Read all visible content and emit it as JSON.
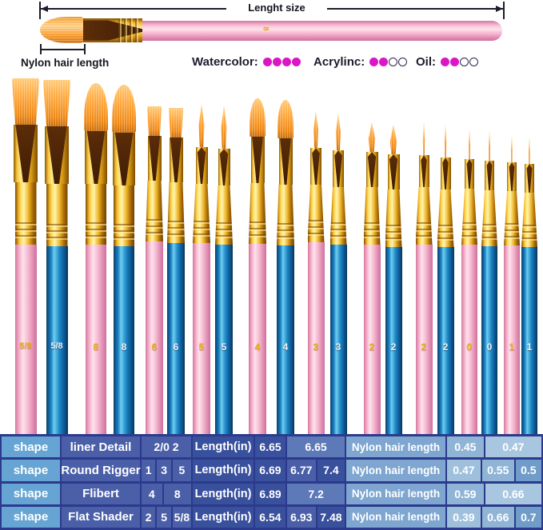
{
  "annotations": {
    "length_size_label": "Lenght size",
    "nylon_hair_label": "Nylon hair length",
    "top_brush_size": "8"
  },
  "legend": {
    "dot_color": "#db16c7",
    "items": [
      {
        "label": "Watercolor:",
        "filled": 4,
        "empty": 0
      },
      {
        "label": "Acrylinc:",
        "filled": 2,
        "empty": 2
      },
      {
        "label": "Oil:",
        "filled": 2,
        "empty": 2
      }
    ]
  },
  "brushes": {
    "items": [
      {
        "label": "5/8",
        "handle": "pink",
        "shape": "flat-large"
      },
      {
        "label": "5/8",
        "handle": "blue",
        "shape": "flat-large"
      },
      {
        "label": "8",
        "handle": "pink",
        "shape": "filbert-large"
      },
      {
        "label": "8",
        "handle": "blue",
        "shape": "filbert-large"
      },
      {
        "label": "6",
        "handle": "pink",
        "shape": "flat-small"
      },
      {
        "label": "6",
        "handle": "blue",
        "shape": "flat-small"
      },
      {
        "label": "5",
        "handle": "pink",
        "shape": "round-5"
      },
      {
        "label": "5",
        "handle": "blue",
        "shape": "round-5"
      },
      {
        "label": "4",
        "handle": "pink",
        "shape": "filbert-small"
      },
      {
        "label": "4",
        "handle": "blue",
        "shape": "filbert-small"
      },
      {
        "label": "3",
        "handle": "pink",
        "shape": "round-3"
      },
      {
        "label": "3",
        "handle": "blue",
        "shape": "round-3"
      },
      {
        "label": "2",
        "handle": "pink",
        "shape": "round-short"
      },
      {
        "label": "2",
        "handle": "blue",
        "shape": "round-short"
      },
      {
        "label": "2",
        "handle": "pink",
        "shape": "liner"
      },
      {
        "label": "2",
        "handle": "blue",
        "shape": "liner"
      },
      {
        "label": "0",
        "handle": "pink",
        "shape": "liner-0"
      },
      {
        "label": "0",
        "handle": "blue",
        "shape": "liner-0"
      },
      {
        "label": "1",
        "handle": "pink",
        "shape": "liner-1"
      },
      {
        "label": "1",
        "handle": "blue",
        "shape": "liner-1"
      }
    ]
  },
  "table": {
    "rows": [
      {
        "shape_label": "shape",
        "name": "liner Detail",
        "sizes": [
          "2/0 2"
        ],
        "length_label": "Length(in)",
        "length_values": [
          "6.65",
          "6.65"
        ],
        "hair_label": "Nylon hair length",
        "hair_values": [
          "0.45",
          "0.47"
        ]
      },
      {
        "shape_label": "shape",
        "name": "Round Rigger",
        "sizes": [
          "1",
          "3",
          "5"
        ],
        "length_label": "Length(in)",
        "length_values": [
          "6.69",
          "6.77",
          "7.4"
        ],
        "hair_label": "Nylon hair length",
        "hair_values": [
          "0.47",
          "0.55",
          "0.5"
        ]
      },
      {
        "shape_label": "shape",
        "name": "Flibert",
        "sizes": [
          "4",
          "8"
        ],
        "length_label": "Length(in)",
        "length_values": [
          "6.89",
          "7.2"
        ],
        "hair_label": "Nylon hair length",
        "hair_values": [
          "0.59",
          "0.66"
        ]
      },
      {
        "shape_label": "shape",
        "name": "Flat Shader",
        "sizes": [
          "2",
          "5",
          "5/8"
        ],
        "length_label": "Length(in)",
        "length_values": [
          "6.54",
          "6.93",
          "7.48"
        ],
        "hair_label": "Nylon hair length",
        "hair_values": [
          "0.39",
          "0.66",
          "0.7"
        ]
      }
    ]
  },
  "palette": {
    "navy_border": "#2b3a8c",
    "shape_cell": "#66a5d3",
    "name_cell": "#4a5fa8",
    "length_label_cell": "#39509d",
    "length_value_dark": "#39509d",
    "length_value_mid": "#4a5fa8",
    "length_value_light": "#5d79b8",
    "hair_label_cell": "#7ea6d0",
    "hair_light_a": "#8fb4d6",
    "hair_light_b": "#9ec0dc",
    "hair_lightest": "#a9c6e0",
    "hair_medium": "#6f9cc9",
    "handle_pink": "#f3aecb",
    "handle_blue": "#1e88c6",
    "ferrule_gold": "#edb427",
    "bristle_orange": "#f79a2e",
    "legend_dot": "#db16c7"
  }
}
